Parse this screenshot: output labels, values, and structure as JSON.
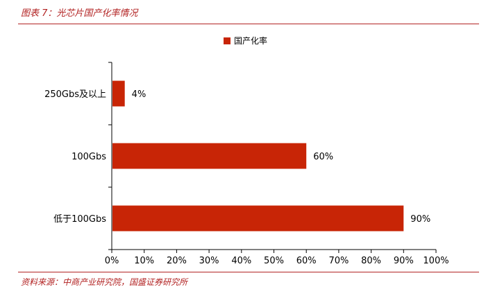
{
  "figure": {
    "title": "图表 7：光芯片国产化率情况",
    "source": "资料来源：中商产业研究院，国盛证券研究所"
  },
  "colors": {
    "bar": "#c82506",
    "accent": "#b22222",
    "axis": "#000000",
    "text": "#000000"
  },
  "chart_data": {
    "type": "bar",
    "orientation": "horizontal",
    "categories": [
      "250Gbs及以上",
      "100Gbs",
      "低于100Gbs"
    ],
    "series": [
      {
        "name": "国产化率",
        "values": [
          4,
          60,
          90
        ]
      }
    ],
    "data_labels": [
      "4%",
      "60%",
      "90%"
    ],
    "xlim": [
      0,
      100
    ],
    "x_ticks": [
      0,
      10,
      20,
      30,
      40,
      50,
      60,
      70,
      80,
      90,
      100
    ],
    "x_tick_labels": [
      "0%",
      "10%",
      "20%",
      "30%",
      "40%",
      "50%",
      "60%",
      "70%",
      "80%",
      "90%",
      "100%"
    ],
    "legend_position": "top-center",
    "grid": false
  }
}
